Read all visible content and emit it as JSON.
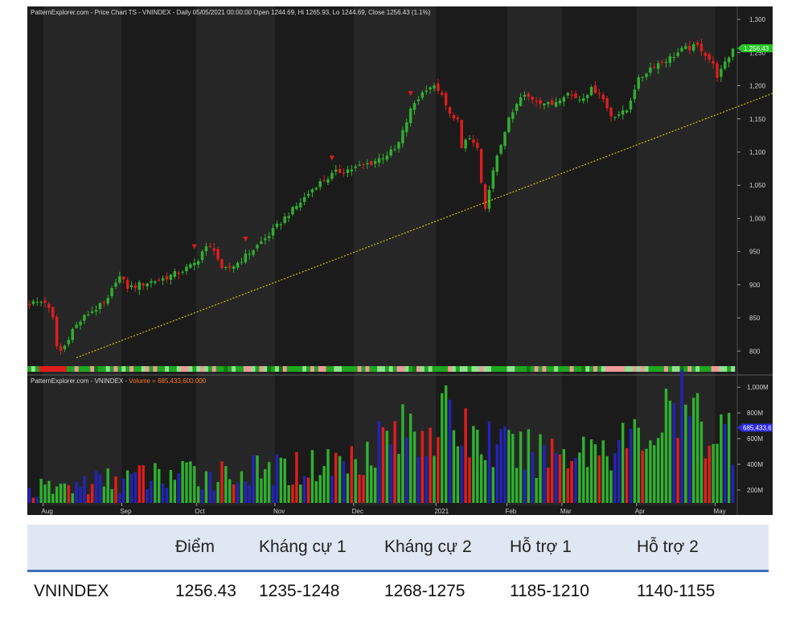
{
  "chart_data": [
    {
      "type": "candlestick",
      "header": "PatternExplorer.com - Price Chart TS - VNINDEX - Daily 05/05/2021 00:00:00 Open 1244.69, Hi 1265.93, Lo 1244.69, Close 1256.43 (1.1%)",
      "ylim": [
        770,
        1305
      ],
      "y_ticks": [
        "1,300",
        "1,250",
        "1,200",
        "1,150",
        "1,100",
        "1,050",
        "1,000",
        "950",
        "900",
        "850",
        "800"
      ],
      "y_tick_values": [
        1300,
        1250,
        1200,
        1150,
        1100,
        1050,
        1000,
        950,
        900,
        850,
        800
      ],
      "last_value_label": "1,256.43",
      "months": [
        "Aug",
        "Sep",
        "Oct",
        "Nov",
        "Dec",
        "2021",
        "Feb",
        "Mar",
        "Apr",
        "May"
      ],
      "month_start_index": [
        4,
        24,
        43,
        63,
        83,
        104,
        122,
        136,
        155,
        175
      ],
      "n_days": 180,
      "trend_points": [
        [
          12,
          790
        ],
        [
          192,
          1195
        ]
      ],
      "down_arrow_days": [
        42,
        55,
        77,
        97
      ],
      "price_anchors": [
        [
          0,
          872
        ],
        [
          6,
          875
        ],
        [
          9,
          850
        ],
        [
          11,
          795
        ],
        [
          14,
          810
        ],
        [
          16,
          830
        ],
        [
          22,
          855
        ],
        [
          30,
          875
        ],
        [
          34,
          915
        ],
        [
          38,
          895
        ],
        [
          42,
          900
        ],
        [
          47,
          905
        ],
        [
          52,
          910
        ],
        [
          58,
          920
        ],
        [
          63,
          930
        ],
        [
          65,
          940
        ],
        [
          67,
          955
        ],
        [
          71,
          955
        ],
        [
          74,
          920
        ],
        [
          79,
          930
        ],
        [
          85,
          950
        ],
        [
          92,
          975
        ],
        [
          99,
          1005
        ],
        [
          103,
          1020
        ],
        [
          110,
          1050
        ],
        [
          118,
          1070
        ],
        [
          124,
          1075
        ],
        [
          132,
          1085
        ],
        [
          141,
          1105
        ],
        [
          147,
          1170
        ],
        [
          153,
          1200
        ],
        [
          157,
          1195
        ],
        [
          162,
          1150
        ],
        [
          164,
          1160
        ],
        [
          166,
          1100
        ],
        [
          168,
          1125
        ],
        [
          172,
          1105
        ],
        [
          174,
          1030
        ],
        [
          175,
          1010
        ],
        [
          176,
          1040
        ],
        [
          178,
          1070
        ],
        [
          183,
          1140
        ],
        [
          189,
          1185
        ],
        [
          194,
          1180
        ],
        [
          200,
          1170
        ],
        [
          206,
          1190
        ],
        [
          211,
          1180
        ],
        [
          216,
          1195
        ],
        [
          219,
          1190
        ],
        [
          223,
          1155
        ],
        [
          229,
          1160
        ],
        [
          233,
          1205
        ],
        [
          239,
          1230
        ],
        [
          245,
          1240
        ],
        [
          251,
          1255
        ],
        [
          257,
          1260
        ],
        [
          262,
          1235
        ],
        [
          264,
          1215
        ],
        [
          266,
          1225
        ],
        [
          270,
          1256
        ]
      ]
    },
    {
      "type": "bar",
      "header_prefix": "PatternExplorer.com - VNINDEX - ",
      "header_label": "Volume = 685,433,600.000",
      "ylim": [
        100,
        1020
      ],
      "y_ticks": [
        "1,000M",
        "800M",
        "600M",
        "400M",
        "200M"
      ],
      "y_tick_values": [
        1000,
        800,
        600,
        400,
        200
      ],
      "last_value_label": "685,433,6",
      "unit": "M",
      "volume_anchors": [
        [
          0,
          210
        ],
        [
          10,
          250
        ],
        [
          20,
          300
        ],
        [
          30,
          330
        ],
        [
          40,
          350
        ],
        [
          50,
          360
        ],
        [
          60,
          370
        ],
        [
          70,
          420
        ],
        [
          80,
          470
        ],
        [
          85,
          620
        ],
        [
          90,
          680
        ],
        [
          95,
          720
        ],
        [
          100,
          760
        ],
        [
          104,
          800
        ],
        [
          108,
          720
        ],
        [
          112,
          650
        ],
        [
          118,
          560
        ],
        [
          124,
          520
        ],
        [
          130,
          550
        ],
        [
          136,
          560
        ],
        [
          142,
          600
        ],
        [
          148,
          630
        ],
        [
          152,
          650
        ],
        [
          156,
          720
        ],
        [
          160,
          860
        ],
        [
          163,
          900
        ],
        [
          166,
          800
        ],
        [
          170,
          720
        ],
        [
          175,
          700
        ]
      ]
    }
  ],
  "levels_table": {
    "columns": [
      "",
      "Điểm",
      "Kháng cự 1",
      "Kháng cự 2",
      "Hỗ trợ 1",
      "Hỗ trợ 2"
    ],
    "rows": [
      [
        "VNINDEX",
        "1256.43",
        "1235-1248",
        "1268-1275",
        "1185-1210",
        "1140-1155"
      ]
    ]
  },
  "colors": {
    "background": "#1b1b1b",
    "band_dark": "#1b1b1b",
    "band_light": "#262626",
    "up": "#2fb12f",
    "down": "#e01d1d",
    "volume_blue": "#2323b8",
    "trend": "#e8e000",
    "last_price": "#22c422",
    "last_volume": "#2b2be0",
    "table_header": "#dfe7f2",
    "table_rule": "#3d6fb6"
  }
}
